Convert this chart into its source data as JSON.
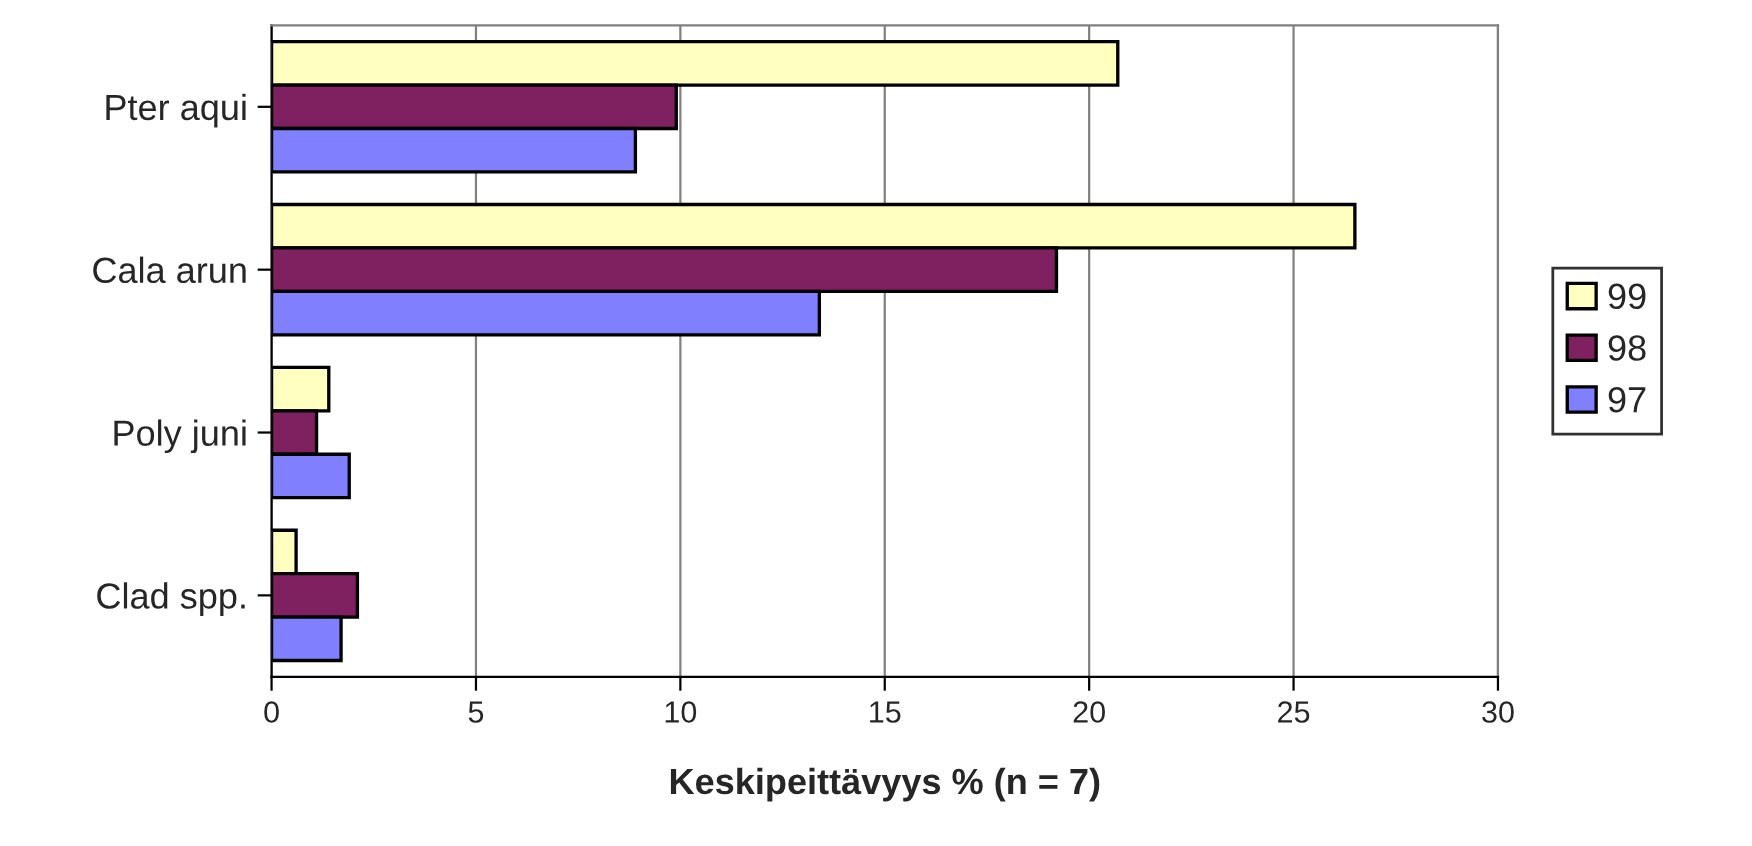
{
  "chart_data": {
    "type": "bar",
    "orientation": "horizontal",
    "xlabel": "Keskipeittävyys % (n = 7)",
    "categories": [
      "Pter aqui",
      "Cala arun",
      "Poly juni",
      "Clad spp."
    ],
    "series": [
      {
        "name": "99",
        "color": "#ffffc0",
        "values": [
          20.7,
          26.5,
          1.4,
          0.6
        ]
      },
      {
        "name": "98",
        "color": "#7f2060",
        "values": [
          9.9,
          19.2,
          1.1,
          2.1
        ]
      },
      {
        "name": "97",
        "color": "#8080ff",
        "values": [
          8.9,
          13.4,
          1.9,
          1.7
        ]
      }
    ],
    "xlim": [
      0,
      30
    ],
    "xticks": [
      0,
      5,
      10,
      15,
      20,
      25,
      30
    ],
    "grid": "x",
    "legend": "right"
  }
}
